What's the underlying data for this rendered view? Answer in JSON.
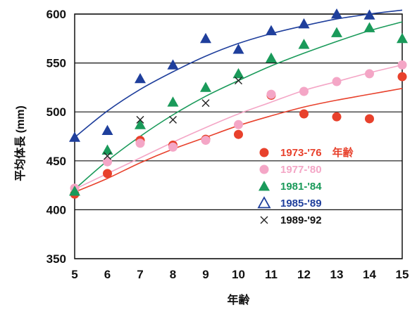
{
  "chart_data": {
    "type": "scatter",
    "title": "",
    "xlabel": "年齢",
    "ylabel": "平均体長 (mm)",
    "xlim": [
      5,
      15
    ],
    "ylim": [
      350,
      600
    ],
    "x_ticks": [
      "5",
      "6",
      "7",
      "8",
      "9",
      "10",
      "11",
      "12",
      "13",
      "14",
      "15"
    ],
    "y_ticks": [
      "350",
      "400",
      "450",
      "500",
      "550",
      "600"
    ],
    "grid": "horizontal",
    "legend_position": "right",
    "series": [
      {
        "name": "1973-'76　年齢",
        "marker": "circle",
        "color": "#e8412c",
        "x": [
          5,
          6,
          7,
          8,
          9,
          10,
          11,
          12,
          13,
          14,
          15
        ],
        "values": [
          416,
          437,
          471,
          466,
          472,
          477,
          517,
          498,
          495,
          493,
          536
        ],
        "fit": [
          [
            5,
            418
          ],
          [
            6,
            432
          ],
          [
            7,
            448
          ],
          [
            8,
            462
          ],
          [
            9,
            474
          ],
          [
            10,
            486
          ],
          [
            11,
            496
          ],
          [
            12,
            505
          ],
          [
            13,
            512
          ],
          [
            14,
            518
          ],
          [
            15,
            524
          ]
        ]
      },
      {
        "name": "1977-'80",
        "marker": "circle",
        "color": "#f4a6c6",
        "x": [
          5,
          6,
          7,
          8,
          9,
          10,
          11,
          12,
          13,
          14,
          15
        ],
        "values": [
          422,
          449,
          468,
          464,
          471,
          487,
          518,
          521,
          531,
          539,
          548
        ],
        "fit": [
          [
            5,
            421
          ],
          [
            6,
            437
          ],
          [
            7,
            453
          ],
          [
            8,
            469
          ],
          [
            9,
            484
          ],
          [
            10,
            498
          ],
          [
            11,
            510
          ],
          [
            12,
            522
          ],
          [
            13,
            531
          ],
          [
            14,
            540
          ],
          [
            15,
            548
          ]
        ]
      },
      {
        "name": "1981-'84",
        "marker": "triangle",
        "color": "#1a9a5a",
        "x": [
          5,
          6,
          7,
          8,
          9,
          10,
          11,
          12,
          13,
          14,
          15
        ],
        "values": [
          419,
          461,
          487,
          510,
          525,
          539,
          555,
          569,
          581,
          586,
          575
        ],
        "fit": [
          [
            5,
            421
          ],
          [
            6,
            450
          ],
          [
            7,
            475
          ],
          [
            8,
            497
          ],
          [
            9,
            516
          ],
          [
            10,
            532
          ],
          [
            11,
            547
          ],
          [
            12,
            560
          ],
          [
            13,
            572
          ],
          [
            14,
            583
          ],
          [
            15,
            592
          ]
        ]
      },
      {
        "name": "1985-'89",
        "marker": "triangle",
        "color": "#1f3f9c",
        "x": [
          5,
          6,
          7,
          8,
          9,
          10,
          11,
          12,
          13,
          14
        ],
        "values": [
          474,
          481,
          534,
          548,
          575,
          564,
          583,
          590,
          600,
          599
        ],
        "fit": [
          [
            5,
            474
          ],
          [
            6,
            501
          ],
          [
            7,
            523
          ],
          [
            8,
            541
          ],
          [
            9,
            557
          ],
          [
            10,
            570
          ],
          [
            11,
            580
          ],
          [
            12,
            588
          ],
          [
            13,
            595
          ],
          [
            14,
            600
          ],
          [
            15,
            604
          ]
        ]
      },
      {
        "name": "1989-'92",
        "marker": "x",
        "color": "#222222",
        "x": [
          6,
          7,
          8,
          9,
          10
        ],
        "values": [
          455,
          492,
          492,
          509,
          532
        ]
      }
    ]
  },
  "colors": {
    "grid": "#111111",
    "text": "#111111"
  }
}
